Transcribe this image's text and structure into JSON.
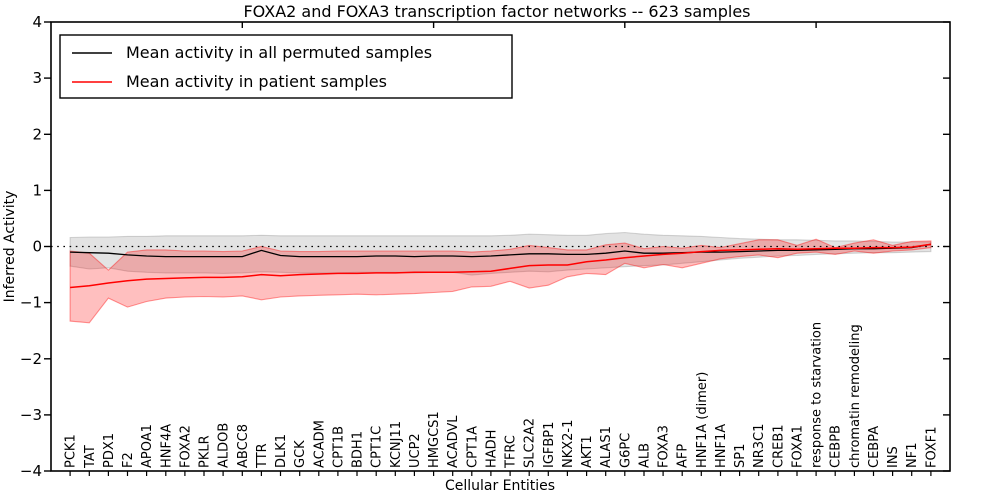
{
  "title": "FOXA2 and FOXA3 transcription factor networks -- 623 samples",
  "axes": {
    "xlabel": "Cellular Entities",
    "ylabel": "Inferred Activity"
  },
  "legend": {
    "entries": [
      {
        "label": "Mean activity in all permuted samples",
        "color": "#000000"
      },
      {
        "label": "Mean activity in patient samples",
        "color": "#ff0000"
      }
    ]
  },
  "chart_data": {
    "type": "line",
    "title": "FOXA2 and FOXA3 transcription factor networks -- 623 samples",
    "xlabel": "Cellular Entities",
    "ylabel": "Inferred Activity",
    "ylim": [
      -4,
      4
    ],
    "xlim": [
      0,
      47
    ],
    "yticks": [
      4,
      3,
      2,
      1,
      0,
      -1,
      -2,
      -3,
      -4
    ],
    "top_xticks": [
      10,
      20,
      30,
      40
    ],
    "zero_line": true,
    "grid": false,
    "legend_position": "upper left",
    "categories": [
      "PCK1",
      "TAT",
      "PDX1",
      "F2",
      "APOA1",
      "HNF4A",
      "FOXA2",
      "PKLR",
      "ALDOB",
      "ABCC8",
      "TTR",
      "DLK1",
      "GCK",
      "ACADM",
      "CPT1B",
      "BDH1",
      "CPT1C",
      "KCNJ11",
      "UCP2",
      "HMGCS1",
      "ACADVL",
      "CPT1A",
      "HADH",
      "TFRC",
      "SLC2A2",
      "IGFBP1",
      "NKX2-1",
      "AKT1",
      "ALAS1",
      "G6PC",
      "ALB",
      "FOXA3",
      "AFP",
      "HNF1A (dimer)",
      "HNF1A",
      "SP1",
      "NR3C1",
      "CREB1",
      "FOXA1",
      "response to starvation",
      "CEBPB",
      "chromatin remodeling",
      "CEBPA",
      "INS",
      "NF1",
      "FOXF1"
    ],
    "series": [
      {
        "name": "Mean activity in all permuted samples",
        "color": "#000000",
        "line_width": 1.3,
        "values": [
          -0.1,
          -0.11,
          -0.12,
          -0.15,
          -0.17,
          -0.18,
          -0.18,
          -0.18,
          -0.18,
          -0.18,
          -0.07,
          -0.16,
          -0.18,
          -0.18,
          -0.18,
          -0.18,
          -0.17,
          -0.17,
          -0.18,
          -0.17,
          -0.17,
          -0.18,
          -0.17,
          -0.15,
          -0.13,
          -0.13,
          -0.14,
          -0.14,
          -0.12,
          -0.08,
          -0.12,
          -0.12,
          -0.11,
          -0.1,
          -0.1,
          -0.09,
          -0.08,
          -0.07,
          -0.07,
          -0.06,
          -0.05,
          -0.04,
          -0.04,
          -0.03,
          -0.02,
          0.04
        ],
        "band": {
          "fill": "rgba(0,0,0,0.11)",
          "edge": "rgba(0,0,0,0.15)",
          "upper": [
            0.16,
            0.17,
            0.17,
            0.18,
            0.18,
            0.19,
            0.19,
            0.19,
            0.19,
            0.19,
            0.2,
            0.19,
            0.19,
            0.19,
            0.19,
            0.19,
            0.19,
            0.19,
            0.19,
            0.19,
            0.19,
            0.19,
            0.19,
            0.2,
            0.22,
            0.21,
            0.2,
            0.2,
            0.23,
            0.25,
            0.22,
            0.2,
            0.19,
            0.18,
            0.16,
            0.14,
            0.13,
            0.12,
            0.12,
            0.11,
            0.1,
            0.1,
            0.09,
            0.08,
            0.08,
            0.08
          ],
          "lower": [
            -0.35,
            -0.4,
            -0.38,
            -0.44,
            -0.46,
            -0.47,
            -0.47,
            -0.47,
            -0.48,
            -0.47,
            -0.45,
            -0.46,
            -0.47,
            -0.47,
            -0.47,
            -0.46,
            -0.46,
            -0.46,
            -0.47,
            -0.46,
            -0.46,
            -0.51,
            -0.48,
            -0.46,
            -0.44,
            -0.45,
            -0.42,
            -0.4,
            -0.38,
            -0.36,
            -0.34,
            -0.33,
            -0.3,
            -0.27,
            -0.24,
            -0.21,
            -0.19,
            -0.17,
            -0.16,
            -0.14,
            -0.13,
            -0.12,
            -0.11,
            -0.11,
            -0.1,
            -0.09
          ]
        }
      },
      {
        "name": "Mean activity in patient samples",
        "color": "#ff0000",
        "line_width": 1.5,
        "values": [
          -0.73,
          -0.7,
          -0.65,
          -0.61,
          -0.58,
          -0.57,
          -0.56,
          -0.55,
          -0.55,
          -0.54,
          -0.5,
          -0.52,
          -0.5,
          -0.49,
          -0.48,
          -0.48,
          -0.47,
          -0.47,
          -0.46,
          -0.46,
          -0.46,
          -0.45,
          -0.44,
          -0.39,
          -0.34,
          -0.33,
          -0.33,
          -0.27,
          -0.24,
          -0.2,
          -0.17,
          -0.14,
          -0.12,
          -0.09,
          -0.07,
          -0.06,
          -0.05,
          -0.04,
          -0.05,
          -0.04,
          -0.03,
          -0.03,
          -0.02,
          -0.02,
          -0.01,
          0.04
        ],
        "band": {
          "fill": "rgba(255,0,0,0.25)",
          "edge": "rgba(255,0,0,0.40)",
          "upper": [
            -0.08,
            -0.12,
            -0.42,
            -0.1,
            -0.06,
            -0.06,
            -0.08,
            -0.08,
            -0.09,
            -0.08,
            0.0,
            -0.08,
            -0.09,
            -0.09,
            -0.08,
            -0.08,
            -0.08,
            -0.08,
            -0.08,
            -0.08,
            -0.08,
            -0.1,
            -0.08,
            -0.05,
            0.02,
            -0.02,
            -0.06,
            -0.06,
            0.03,
            0.06,
            -0.04,
            0.0,
            -0.03,
            0.02,
            -0.02,
            0.05,
            0.12,
            0.12,
            0.02,
            0.13,
            -0.02,
            0.06,
            0.12,
            0.02,
            0.09,
            0.1
          ],
          "lower": [
            -1.33,
            -1.36,
            -0.92,
            -1.08,
            -0.98,
            -0.92,
            -0.9,
            -0.89,
            -0.9,
            -0.88,
            -0.95,
            -0.9,
            -0.88,
            -0.87,
            -0.86,
            -0.85,
            -0.86,
            -0.85,
            -0.84,
            -0.82,
            -0.8,
            -0.72,
            -0.71,
            -0.62,
            -0.74,
            -0.69,
            -0.54,
            -0.48,
            -0.5,
            -0.3,
            -0.38,
            -0.32,
            -0.38,
            -0.3,
            -0.22,
            -0.18,
            -0.15,
            -0.2,
            -0.12,
            -0.1,
            -0.14,
            -0.08,
            -0.12,
            -0.08,
            -0.06,
            -0.02
          ]
        }
      }
    ]
  }
}
